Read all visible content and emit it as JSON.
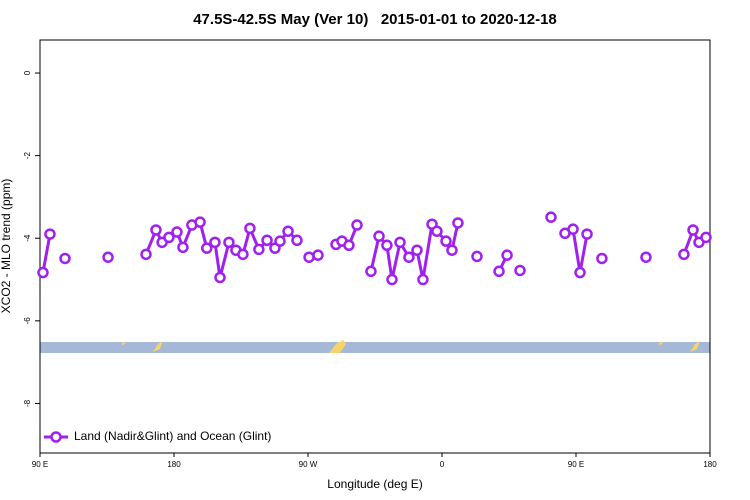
{
  "chart_data": {
    "type": "line",
    "title": "47.5S-42.5S May (Ver 10)   2015-01-01 to 2020-12-18",
    "x_label": "Longitude (deg E)",
    "y_label": "XCO2 - MLO trend (ppm)",
    "xlim": [
      90,
      540
    ],
    "ylim": [
      -9.2,
      0.8
    ],
    "xticks": [
      {
        "value": 90,
        "label": "90 E"
      },
      180,
      {
        "value": 270,
        "label": "90 W"
      },
      {
        "value": 360,
        "label": "0"
      },
      {
        "value": 450,
        "label": "90 E"
      },
      {
        "value": 540,
        "label": "180"
      }
    ],
    "yticks": [
      0,
      -2,
      -4,
      -6,
      -8
    ],
    "legend": "bottomleft",
    "series": [
      {
        "name": "Land (Nadir&Glint) and Ocean (Glint)",
        "color": "#a020f0",
        "x": [
          92,
          96.7,
          null,
          106.8,
          null,
          135.7,
          null,
          161.2,
          167.9,
          172,
          176.6,
          182,
          186,
          192,
          197.5,
          202,
          207.5,
          210.9,
          216.9,
          221.6,
          226.3,
          231,
          237,
          242.5,
          247.8,
          251.2,
          256.6,
          262.6,
          null,
          270.7,
          276.7,
          null,
          288.8,
          292.8,
          297.5,
          302.9,
          null,
          312.3,
          317.7,
          323,
          326.4,
          331.8,
          337.8,
          343.2,
          347.2,
          353.3,
          356.6,
          362.7,
          366.7,
          370.7,
          null,
          383.5,
          null,
          398.3,
          403.7,
          null,
          412.4,
          null,
          433.2,
          null,
          442.6,
          448,
          452.7,
          457.4,
          null,
          467.4,
          null,
          497,
          null,
          522.5,
          528.6,
          532.6,
          537.3
        ],
        "values": [
          -4.83,
          -3.9,
          null,
          -4.49,
          null,
          -4.46,
          null,
          -4.39,
          -3.8,
          -4.1,
          -3.98,
          -3.85,
          -4.22,
          -3.68,
          -3.61,
          -4.24,
          -4.1,
          -4.95,
          -4.1,
          -4.29,
          -4.39,
          -3.76,
          -4.27,
          -4.05,
          -4.24,
          -4.07,
          -3.83,
          -4.05,
          null,
          -4.46,
          -4.41,
          null,
          -4.15,
          -4.07,
          -4.17,
          -3.68,
          null,
          -4.8,
          -3.95,
          -4.17,
          -5.0,
          -4.1,
          -4.46,
          -4.29,
          -5.0,
          -3.66,
          -3.83,
          -4.07,
          -4.29,
          -3.63,
          null,
          -4.44,
          null,
          -4.8,
          -4.41,
          null,
          -4.78,
          null,
          -3.49,
          null,
          -3.88,
          -3.78,
          -4.83,
          -3.9,
          null,
          -4.49,
          null,
          -4.46,
          null,
          -4.39,
          -3.8,
          -4.1,
          -3.98
        ]
      }
    ]
  }
}
